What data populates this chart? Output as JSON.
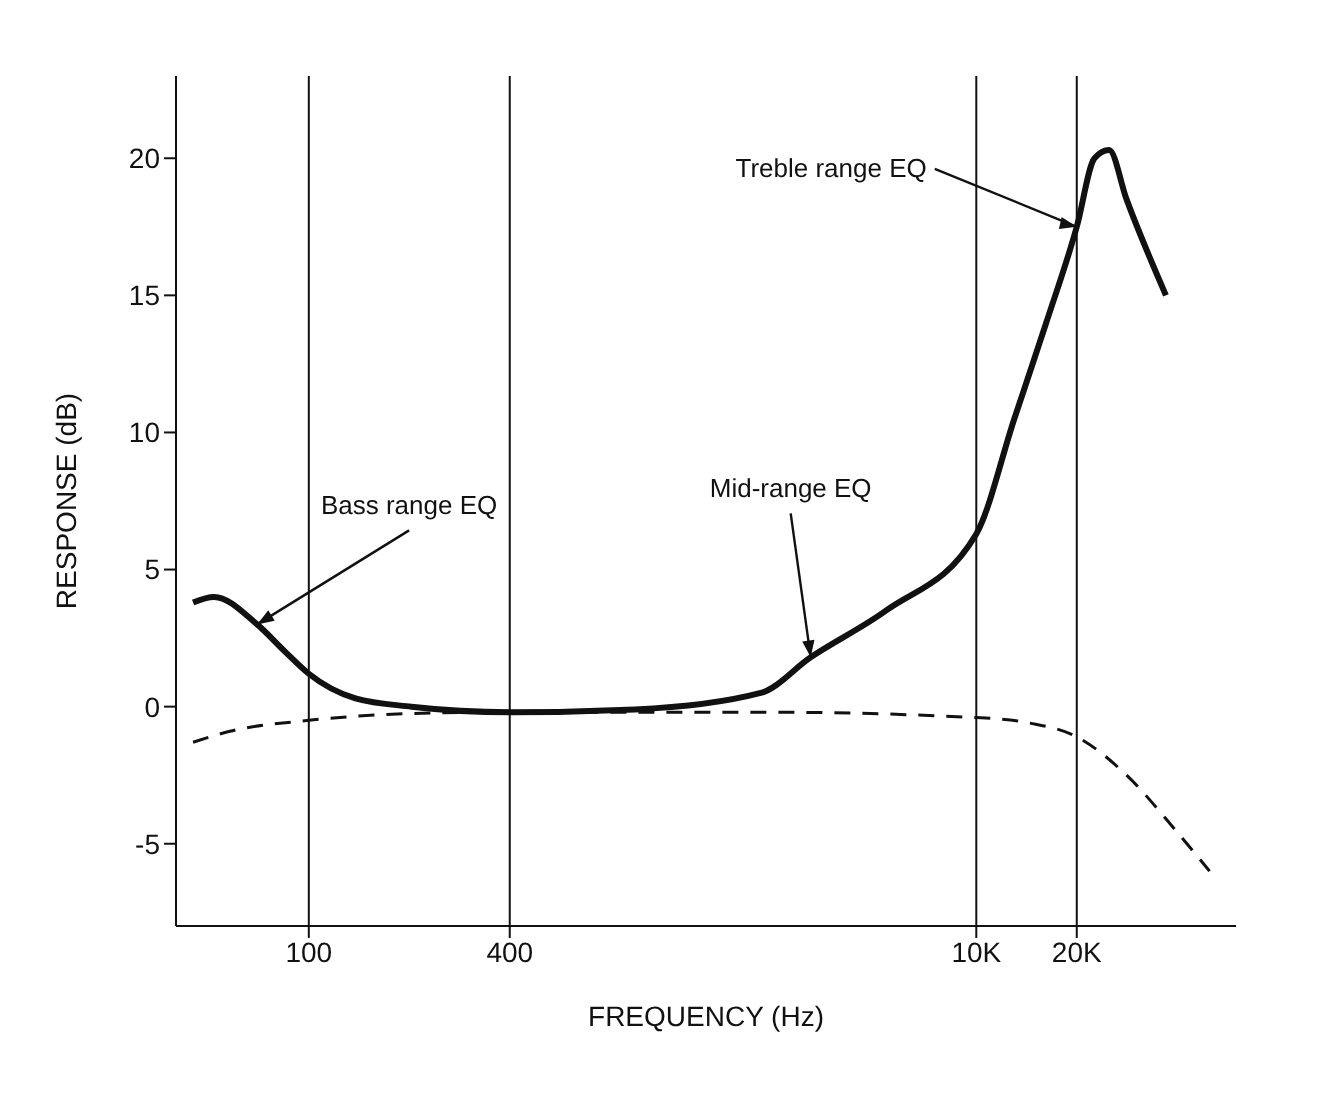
{
  "chart_data": {
    "type": "line",
    "xlabel": "FREQUENCY (Hz)",
    "ylabel": "RESPONSE (dB)",
    "log": "x",
    "xlim": [
      40,
      60000
    ],
    "xticks": [
      100,
      400,
      {
        "value": 10000,
        "label": "10K"
      },
      {
        "value": 20000,
        "label": "20K"
      }
    ],
    "ylim": [
      -8,
      23
    ],
    "yticks": [
      -5,
      0,
      5,
      10,
      15,
      20
    ],
    "grid": false,
    "marker": "none",
    "series": [
      {
        "color": "#111111",
        "line_style": "solid",
        "x": [
          45,
          52,
          70,
          85,
          100,
          138,
          203,
          400,
          950,
          2260,
          3190,
          5360,
          10000,
          13000,
          16200,
          20000,
          22600,
          25000,
          28200,
          37000
        ],
        "values": [
          3.8,
          4,
          3,
          2,
          1.2,
          0.3,
          0,
          -0.2,
          -0.1,
          0.5,
          1.8,
          3.5,
          6.3,
          10.5,
          14,
          17.5,
          20,
          20.3,
          18.5,
          15
        ]
      },
      {
        "color": "#111111",
        "line_style": "dashed",
        "x": [
          45,
          58,
          100,
          203,
          400,
          2260,
          10000,
          14500,
          20000,
          28200,
          39500,
          50000
        ],
        "values": [
          -1.3,
          -0.9,
          -0.5,
          -0.25,
          -0.2,
          -0.2,
          -0.4,
          -0.6,
          -1.1,
          -2.5,
          -4.5,
          -6
        ]
      }
    ],
    "ref_lines": [
      {
        "axis": "x",
        "value": 100
      },
      {
        "axis": "x",
        "value": 400
      },
      {
        "axis": "x",
        "value": 10000
      },
      {
        "axis": "x",
        "value": 20000
      }
    ],
    "annotations": [
      {
        "text": "Bass range EQ",
        "x": 70,
        "y": 3
      },
      {
        "text": "Mid-range EQ",
        "x": 3190,
        "y": 1.8
      },
      {
        "text": "Treble range EQ",
        "x": 20000,
        "y": 17.5
      }
    ]
  }
}
